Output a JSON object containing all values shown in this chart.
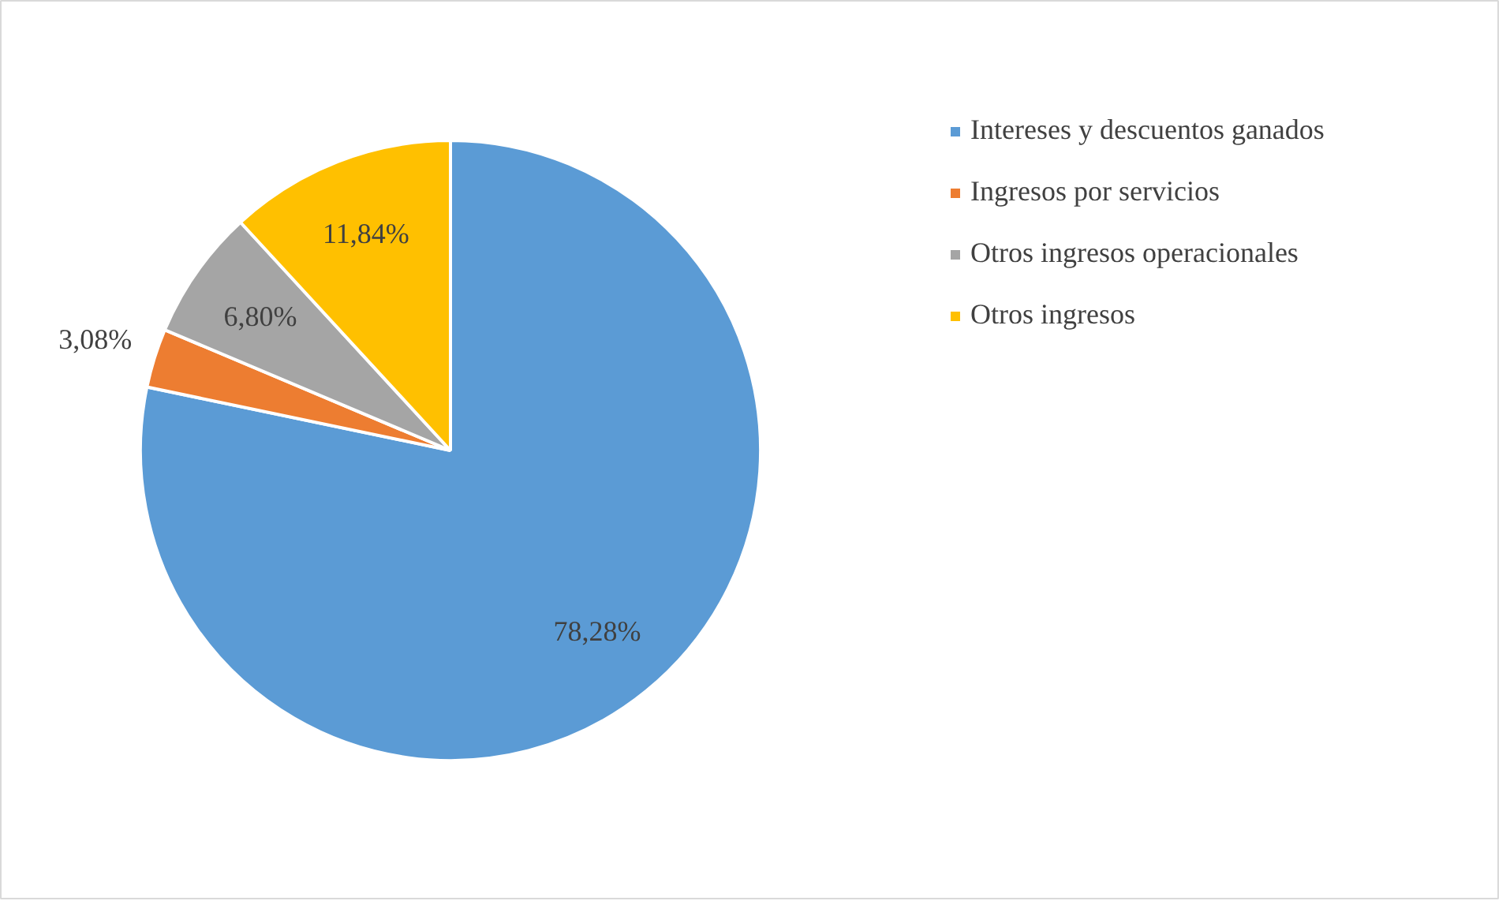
{
  "chart_data": {
    "type": "pie",
    "categories": [
      "Intereses y descuentos ganados",
      "Ingresos por servicios",
      "Otros ingresos operacionales",
      "Otros ingresos"
    ],
    "values": [
      78.28,
      3.08,
      6.8,
      11.84
    ],
    "colors": [
      "#5b9bd5",
      "#ed7d31",
      "#a5a5a5",
      "#ffc000"
    ],
    "value_labels": [
      "78,28%",
      "3,08%",
      "6,80%",
      "11,84%"
    ],
    "legend": "right"
  }
}
